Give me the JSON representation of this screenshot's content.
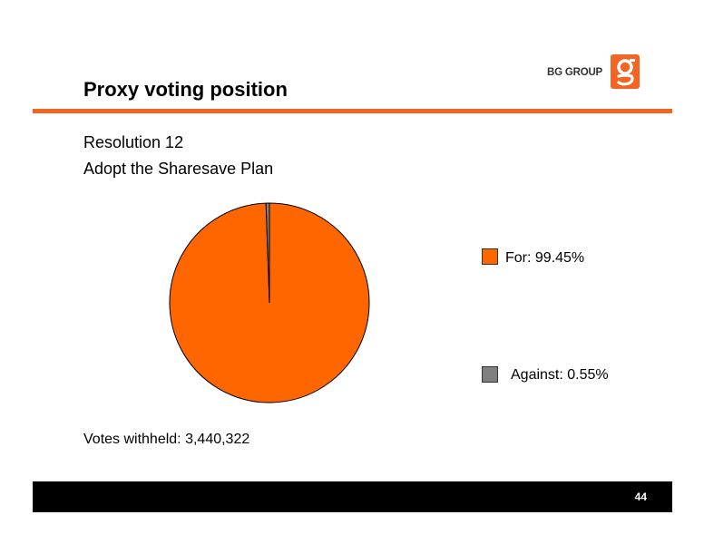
{
  "brand": {
    "name": "BG GROUP",
    "logo_icon": "bg-g-logo-icon",
    "accent": "#f26522"
  },
  "slide": {
    "title": "Proxy voting position",
    "subtitle_line1": "Resolution 12",
    "subtitle_line2": "Adopt the Sharesave Plan",
    "votes_withheld": "Votes withheld: 3,440,322",
    "page_number": "44"
  },
  "chart_data": {
    "type": "pie",
    "slices": [
      {
        "label": "For",
        "value": 99.45,
        "color": "#ff6600"
      },
      {
        "label": "Against",
        "value": 0.55,
        "color": "#808080"
      }
    ],
    "legend_labels": [
      "For: 99.45%",
      "Against: 0.55%"
    ],
    "legend_position": "right"
  }
}
